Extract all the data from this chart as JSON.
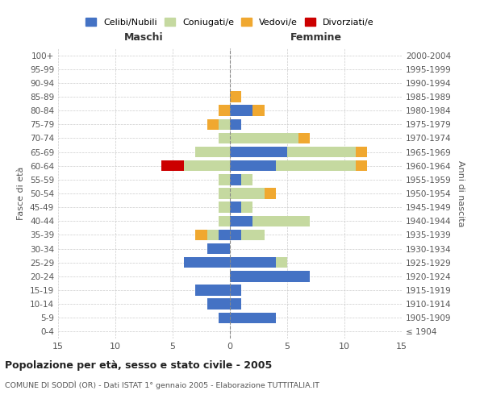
{
  "age_groups": [
    "100+",
    "95-99",
    "90-94",
    "85-89",
    "80-84",
    "75-79",
    "70-74",
    "65-69",
    "60-64",
    "55-59",
    "50-54",
    "45-49",
    "40-44",
    "35-39",
    "30-34",
    "25-29",
    "20-24",
    "15-19",
    "10-14",
    "5-9",
    "0-4"
  ],
  "birth_years": [
    "≤ 1904",
    "1905-1909",
    "1910-1914",
    "1915-1919",
    "1920-1924",
    "1925-1929",
    "1930-1934",
    "1935-1939",
    "1940-1944",
    "1945-1949",
    "1950-1954",
    "1955-1959",
    "1960-1964",
    "1965-1969",
    "1970-1974",
    "1975-1979",
    "1980-1984",
    "1985-1989",
    "1990-1994",
    "1995-1999",
    "2000-2004"
  ],
  "male": {
    "celibi": [
      0,
      0,
      0,
      0,
      0,
      0,
      0,
      0,
      0,
      0,
      0,
      0,
      0,
      1,
      2,
      4,
      0,
      3,
      2,
      1,
      0
    ],
    "coniugati": [
      0,
      0,
      0,
      0,
      0,
      1,
      1,
      3,
      4,
      1,
      1,
      1,
      1,
      1,
      0,
      0,
      0,
      0,
      0,
      0,
      0
    ],
    "vedovi": [
      0,
      0,
      0,
      0,
      1,
      1,
      0,
      0,
      0,
      0,
      0,
      0,
      0,
      1,
      0,
      0,
      0,
      0,
      0,
      0,
      0
    ],
    "divorziati": [
      0,
      0,
      0,
      0,
      0,
      0,
      0,
      0,
      2,
      0,
      0,
      0,
      0,
      0,
      0,
      0,
      0,
      0,
      0,
      0,
      0
    ]
  },
  "female": {
    "nubili": [
      0,
      0,
      0,
      0,
      2,
      1,
      0,
      5,
      4,
      1,
      0,
      1,
      2,
      1,
      0,
      4,
      7,
      1,
      1,
      4,
      0
    ],
    "coniugate": [
      0,
      0,
      0,
      0,
      0,
      0,
      6,
      6,
      7,
      1,
      3,
      1,
      5,
      2,
      0,
      1,
      0,
      0,
      0,
      0,
      0
    ],
    "vedove": [
      0,
      0,
      0,
      1,
      1,
      0,
      1,
      1,
      1,
      0,
      1,
      0,
      0,
      0,
      0,
      0,
      0,
      0,
      0,
      0,
      0
    ],
    "divorziate": [
      0,
      0,
      0,
      0,
      0,
      0,
      0,
      0,
      0,
      0,
      0,
      0,
      0,
      0,
      0,
      0,
      0,
      0,
      0,
      0,
      0
    ]
  },
  "colors": {
    "celibi_nubili": "#4472c4",
    "coniugati": "#c5d9a0",
    "vedovi": "#f0a830",
    "divorziati": "#cc0000"
  },
  "xlim": 15,
  "title": "Popolazione per età, sesso e stato civile - 2005",
  "subtitle": "COMUNE DI SODDÌ (OR) - Dati ISTAT 1° gennaio 2005 - Elaborazione TUTTITALIA.IT",
  "ylabel_left": "Fasce di età",
  "ylabel_right": "Anni di nascita",
  "xlabel_male": "Maschi",
  "xlabel_female": "Femmine",
  "legend_labels": [
    "Celibi/Nubili",
    "Coniugati/e",
    "Vedovi/e",
    "Divorziati/e"
  ],
  "bg_color": "#ffffff",
  "grid_color": "#cccccc"
}
